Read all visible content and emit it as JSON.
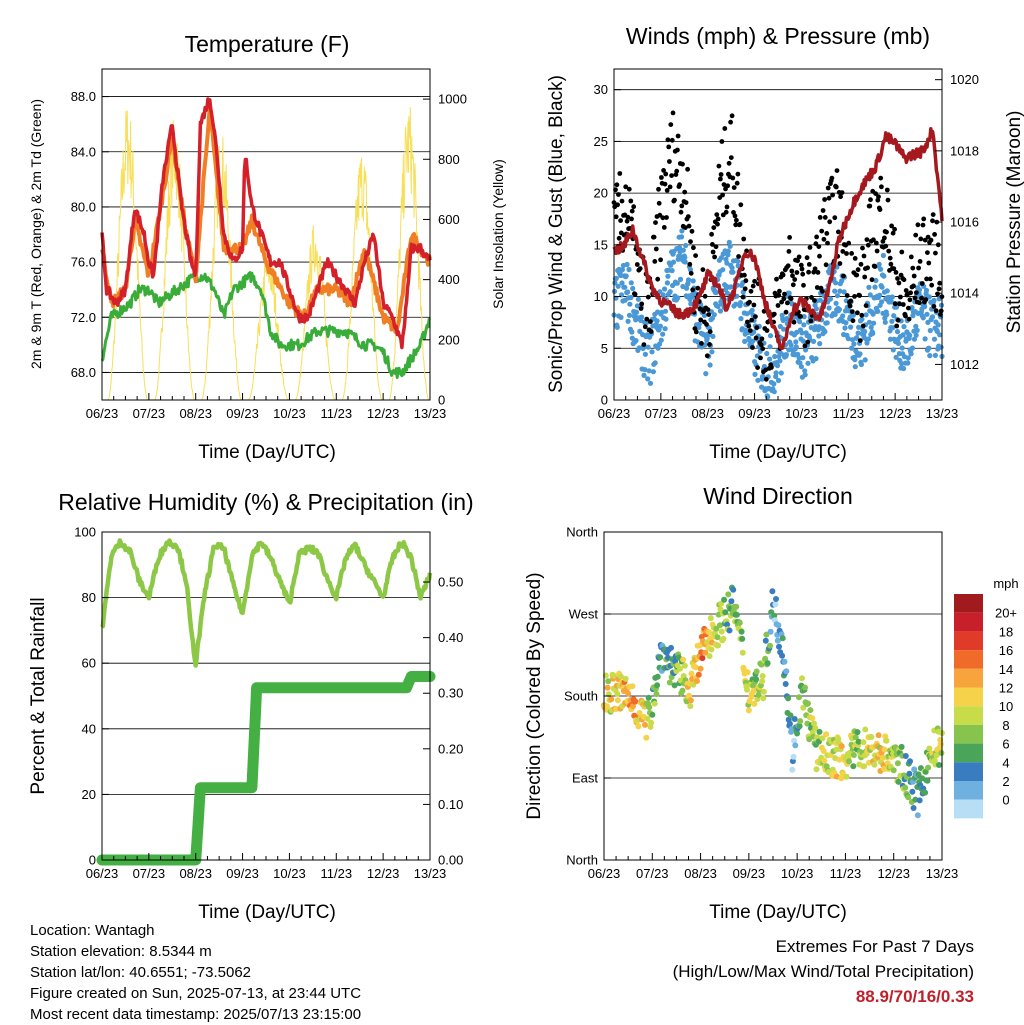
{
  "days": [
    "06/23",
    "07/23",
    "08/23",
    "09/23",
    "10/23",
    "11/23",
    "12/23",
    "13/23"
  ],
  "time_axis_label": "Time (Day/UTC)",
  "colors": {
    "temp_red": "#d4202a",
    "temp_orange": "#f07e24",
    "dewpoint_green": "#3aac3a",
    "solar_yellow": "#f7df5a",
    "wind_blue": "#4a98d6",
    "gust_black": "#000000",
    "pressure_maroon": "#a5181e",
    "rh_green": "#8cc846",
    "rain_green": "#44b044"
  },
  "panels": {
    "temperature": {
      "title": "Temperature (F)",
      "ylabel": "2m & 9m T (Red, Orange) & 2m Td (Green)",
      "ylabel_right": "Solar Insolation (Yellow)",
      "yticks": [
        "68.0",
        "72.0",
        "76.0",
        "80.0",
        "84.0",
        "88.0"
      ],
      "yticks_right": [
        "0",
        "200",
        "400",
        "600",
        "800",
        "1000"
      ]
    },
    "wind": {
      "title": "Winds (mph) & Pressure (mb)",
      "ylabel": "Sonic/Prop Wind & Gust (Blue, Black)",
      "ylabel_right": "Station Pressure (Maroon)",
      "yticks": [
        "0",
        "5",
        "10",
        "15",
        "20",
        "25",
        "30"
      ],
      "yticks_right": [
        "1012",
        "1014",
        "1016",
        "1018",
        "1020"
      ]
    },
    "humidity": {
      "title": "Relative Humidity (%) & Precipitation (in)",
      "ylabel": "Percent & Total Rainfall",
      "yticks": [
        "0",
        "20",
        "40",
        "60",
        "80",
        "100"
      ],
      "yticks_right": [
        "0.00",
        "0.10",
        "0.20",
        "0.30",
        "0.40",
        "0.50"
      ]
    },
    "direction": {
      "title": "Wind Direction",
      "ylabel": "Direction (Colored By Speed)",
      "yticks": [
        "North",
        "East",
        "South",
        "West",
        "North"
      ],
      "legend_title": "mph",
      "legend_labels": [
        "20+",
        "18",
        "16",
        "14",
        "12",
        "10",
        "8",
        "6",
        "4",
        "2",
        "0"
      ],
      "legend_colors": [
        "#a01a1e",
        "#c8202a",
        "#e03a28",
        "#f06a2a",
        "#f7a43c",
        "#f5d24a",
        "#c8dc4a",
        "#86c44e",
        "#4aa45a",
        "#3a7cc0",
        "#6eb0e0",
        "#b8def6"
      ]
    }
  },
  "chart_data": [
    {
      "type": "line",
      "title": "Temperature (F)",
      "xlabel": "Time (Day/UTC)",
      "ylabel": "2m & 9m T (Red, Orange) & 2m Td (Green)",
      "y2label": "Solar Insolation (Yellow)",
      "xlim": [
        0,
        7
      ],
      "ylim": [
        66,
        90
      ],
      "y2lim": [
        0,
        1100
      ],
      "series": [
        {
          "name": "2m T",
          "axis": "left",
          "x": [
            0,
            0.1,
            0.3,
            0.5,
            0.7,
            0.9,
            1.0,
            1.1,
            1.3,
            1.5,
            1.7,
            1.9,
            2.0,
            2.1,
            2.3,
            2.45,
            2.6,
            2.8,
            3.0,
            3.05,
            3.2,
            3.4,
            3.6,
            3.8,
            4.0,
            4.2,
            4.4,
            4.6,
            4.8,
            5.0,
            5.2,
            5.4,
            5.6,
            5.8,
            6.0,
            6.2,
            6.4,
            6.5,
            6.6,
            6.8,
            7.0
          ],
          "y": [
            78,
            74,
            73,
            74,
            80,
            78,
            76,
            75,
            82,
            86,
            80,
            76,
            75,
            86,
            88,
            84,
            78,
            76,
            77,
            84,
            80,
            78,
            76,
            76,
            74,
            72,
            72,
            74,
            76,
            75,
            74,
            73,
            76,
            78,
            73,
            72,
            70,
            73,
            77,
            77,
            76
          ]
        },
        {
          "name": "9m T",
          "axis": "left",
          "x": [
            0,
            0.2,
            0.5,
            0.7,
            1.0,
            1.3,
            1.5,
            1.8,
            2.0,
            2.3,
            2.6,
            3.0,
            3.2,
            3.5,
            4.0,
            4.3,
            4.6,
            5.0,
            5.3,
            5.6,
            6.0,
            6.3,
            6.6,
            7.0
          ],
          "y": [
            77,
            73,
            74,
            79,
            75,
            81,
            85,
            78,
            75,
            87,
            77,
            77,
            79,
            76,
            73,
            72,
            74,
            74,
            73,
            77,
            72,
            71,
            78,
            76
          ]
        },
        {
          "name": "2m Td",
          "axis": "left",
          "x": [
            0,
            0.2,
            0.4,
            0.6,
            0.8,
            1.0,
            1.2,
            1.4,
            1.6,
            1.8,
            2.0,
            2.2,
            2.4,
            2.6,
            2.8,
            3.0,
            3.2,
            3.4,
            3.6,
            3.8,
            4.0,
            4.2,
            4.4,
            4.6,
            4.8,
            5.0,
            5.2,
            5.4,
            5.6,
            5.8,
            6.0,
            6.2,
            6.4,
            6.6,
            6.8,
            7.0
          ],
          "y": [
            69,
            72,
            72.5,
            73,
            74,
            74,
            73,
            73.5,
            74,
            74.5,
            75,
            75,
            74,
            72,
            74,
            74.5,
            75,
            74,
            71,
            70,
            70,
            70,
            70.5,
            71,
            71,
            71,
            71,
            70.5,
            70,
            70,
            69.5,
            68,
            68,
            69,
            70,
            72
          ]
        },
        {
          "name": "Solar",
          "axis": "right",
          "x": [
            0.1,
            0.55,
            0.95,
            1.1,
            1.55,
            1.95,
            2.1,
            2.55,
            2.95,
            3.1,
            3.55,
            3.95,
            4.1,
            4.55,
            4.95,
            5.1,
            5.55,
            5.95,
            6.1,
            6.55,
            6.95
          ],
          "y": [
            0,
            1000,
            0,
            0,
            950,
            0,
            0,
            900,
            0,
            0,
            500,
            0,
            0,
            600,
            0,
            0,
            850,
            0,
            0,
            1000,
            0
          ]
        }
      ]
    },
    {
      "type": "scatter",
      "title": "Winds (mph) & Pressure (mb)",
      "xlabel": "Time (Day/UTC)",
      "ylabel": "Sonic/Prop Wind & Gust (Blue, Black)",
      "y2label": "Station Pressure (Maroon)",
      "xlim": [
        0,
        7
      ],
      "ylim": [
        0,
        32
      ],
      "y2lim": [
        1011,
        1020.3
      ],
      "series": [
        {
          "name": "Wind",
          "axis": "left",
          "x": [
            0,
            0.25,
            0.5,
            0.75,
            1.0,
            1.25,
            1.5,
            1.75,
            2.0,
            2.25,
            2.5,
            2.75,
            3.0,
            3.25,
            3.5,
            3.75,
            4.0,
            4.25,
            4.5,
            4.75,
            5.0,
            5.25,
            5.5,
            5.75,
            6.0,
            6.25,
            6.5,
            6.75,
            7.0
          ],
          "y": [
            9,
            11,
            7,
            4,
            8,
            12,
            14,
            8,
            5,
            11,
            13,
            9,
            5,
            3,
            4,
            8,
            5,
            6,
            9,
            11,
            8,
            5,
            9,
            11,
            7,
            5,
            9,
            7,
            7
          ]
        },
        {
          "name": "Gust",
          "axis": "left",
          "x": [
            0,
            0.25,
            0.5,
            0.75,
            1.0,
            1.25,
            1.5,
            1.75,
            2.0,
            2.25,
            2.5,
            2.75,
            3.0,
            3.25,
            3.5,
            3.75,
            4.0,
            4.25,
            4.5,
            4.75,
            5.0,
            5.25,
            5.5,
            5.75,
            6.0,
            6.25,
            6.5,
            6.75,
            7.0
          ],
          "y": [
            16,
            19,
            12,
            8,
            18,
            24,
            21,
            10,
            8,
            20,
            24,
            14,
            8,
            6,
            8,
            13,
            9,
            11,
            16,
            18,
            14,
            9,
            16,
            19,
            12,
            9,
            13,
            14,
            12
          ]
        },
        {
          "name": "Pressure",
          "axis": "right",
          "x": [
            0,
            0.2,
            0.4,
            0.6,
            0.8,
            1.0,
            1.2,
            1.4,
            1.6,
            1.8,
            2.0,
            2.2,
            2.4,
            2.6,
            2.8,
            3.0,
            3.2,
            3.4,
            3.6,
            3.8,
            4.0,
            4.2,
            4.4,
            4.6,
            4.8,
            5.0,
            5.2,
            5.4,
            5.6,
            5.8,
            6.0,
            6.2,
            6.4,
            6.6,
            6.8,
            7.0
          ],
          "y": [
            1015.2,
            1015.3,
            1015.8,
            1015,
            1014.2,
            1013.8,
            1013.6,
            1013.4,
            1013.5,
            1013.8,
            1014.5,
            1014.3,
            1013.6,
            1014.2,
            1015.2,
            1015.0,
            1013.9,
            1013.0,
            1012.4,
            1013.5,
            1013.8,
            1013.5,
            1013.3,
            1014.2,
            1015.5,
            1016.2,
            1016.8,
            1017.2,
            1017.6,
            1018.4,
            1018.2,
            1017.8,
            1017.9,
            1018.0,
            1018.6,
            1016.1
          ]
        }
      ]
    },
    {
      "type": "line",
      "title": "Relative Humidity (%) & Precipitation (in)",
      "xlabel": "Time (Day/UTC)",
      "ylabel": "Percent & Total Rainfall",
      "xlim": [
        0,
        7
      ],
      "ylim": [
        0,
        100
      ],
      "y2lim": [
        0,
        0.59
      ],
      "series": [
        {
          "name": "RH",
          "axis": "left",
          "x": [
            0,
            0.2,
            0.4,
            0.6,
            0.8,
            1.0,
            1.2,
            1.4,
            1.6,
            1.8,
            1.9,
            2.0,
            2.2,
            2.4,
            2.6,
            2.8,
            3.0,
            3.2,
            3.4,
            3.6,
            3.8,
            4.0,
            4.2,
            4.4,
            4.6,
            4.8,
            5.0,
            5.2,
            5.4,
            5.6,
            5.8,
            6.0,
            6.2,
            6.4,
            6.6,
            6.8,
            7.0
          ],
          "y": [
            70,
            93,
            97,
            94,
            85,
            80,
            92,
            97,
            96,
            85,
            70,
            60,
            82,
            96,
            95,
            84,
            75,
            93,
            97,
            92,
            85,
            78,
            93,
            95,
            94,
            86,
            80,
            92,
            96,
            90,
            85,
            80,
            92,
            97,
            92,
            80,
            87
          ]
        },
        {
          "name": "Rain",
          "axis": "right",
          "x": [
            0,
            1.0,
            2.0,
            2.1,
            2.2,
            2.5,
            2.8,
            3.2,
            3.3,
            3.5,
            4.0,
            5.0,
            6.0,
            6.5,
            6.6,
            7.0
          ],
          "y": [
            0,
            0,
            0,
            0.13,
            0.13,
            0.13,
            0.13,
            0.13,
            0.31,
            0.31,
            0.31,
            0.31,
            0.31,
            0.31,
            0.33,
            0.33
          ]
        }
      ]
    },
    {
      "type": "scatter",
      "title": "Wind Direction",
      "xlabel": "Time (Day/UTC)",
      "ylabel": "Direction (Colored By Speed)",
      "xlim": [
        0,
        7
      ],
      "ylim": [
        0,
        360
      ],
      "series": [
        {
          "name": "Direction",
          "x": [
            0,
            0.3,
            0.6,
            0.9,
            1.2,
            1.5,
            1.8,
            2.1,
            2.4,
            2.7,
            3.0,
            3.3,
            3.5,
            3.7,
            3.9,
            4.1,
            4.4,
            4.7,
            5.0,
            5.3,
            5.6,
            5.9,
            6.2,
            6.5,
            6.8,
            7.0
          ],
          "y": [
            180,
            185,
            175,
            150,
            230,
            205,
            190,
            240,
            260,
            280,
            185,
            200,
            280,
            240,
            120,
            185,
            120,
            115,
            110,
            125,
            120,
            115,
            100,
            70,
            120,
            125
          ],
          "speed": [
            11,
            12,
            14,
            10,
            4,
            7,
            12,
            15,
            8,
            6,
            10,
            9,
            3,
            5,
            2,
            7,
            9,
            10,
            11,
            8,
            12,
            10,
            7,
            4,
            9,
            10
          ]
        }
      ]
    }
  ],
  "info": {
    "location": "Location: Wantagh",
    "elevation": "Station elevation: 8.5344 m",
    "latlon": "Station lat/lon: 40.6551; -73.5062",
    "created": "Figure created on Sun, 2025-07-13, at 23:44 UTC",
    "recent": "Most recent data timestamp: 2025/07/13 23:15:00"
  },
  "extremes": {
    "title": "Extremes For Past 7 Days",
    "subtitle": "(High/Low/Max Wind/Total Precipitation)",
    "value": "88.9/70/16/0.33"
  }
}
